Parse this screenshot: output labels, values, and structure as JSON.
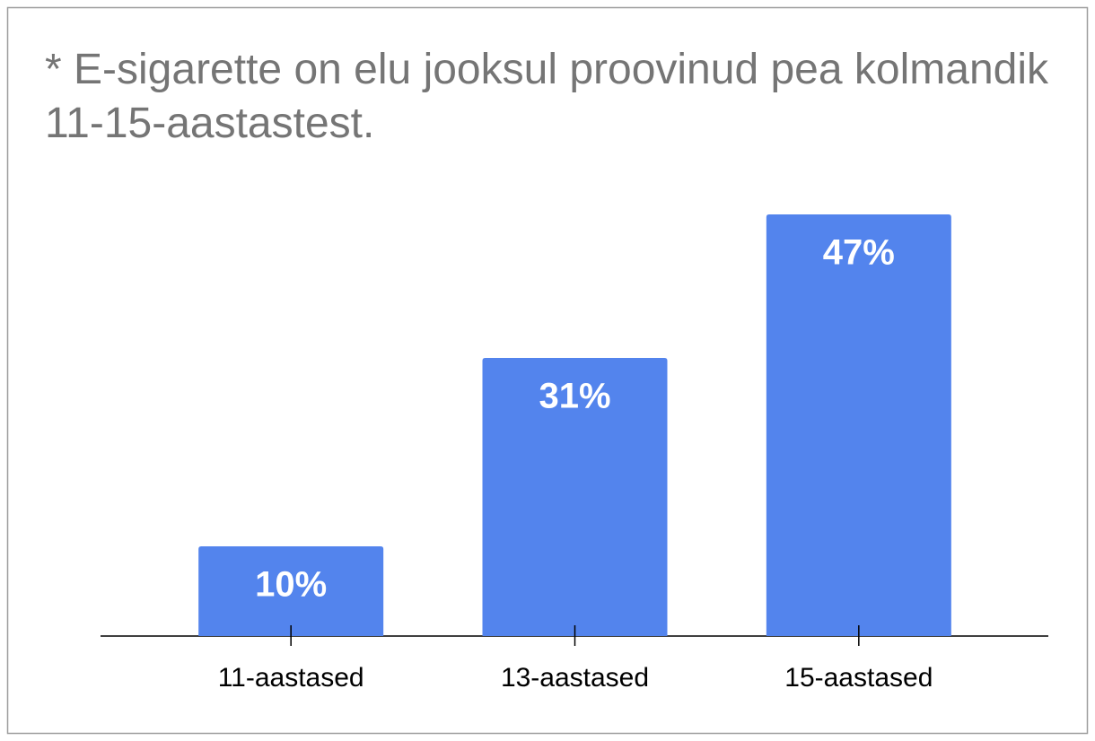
{
  "chart_data": {
    "type": "bar",
    "title": "* E-sigarette on elu jooksul proovinud pea kolmandik 11-15-aastastest.",
    "categories": [
      "11-aastased",
      "13-aastased",
      "15-aastased"
    ],
    "values": [
      10,
      31,
      47
    ],
    "value_labels": [
      "10%",
      "31%",
      "47%"
    ],
    "color": "#5384ed",
    "ylim": [
      0,
      50
    ]
  }
}
